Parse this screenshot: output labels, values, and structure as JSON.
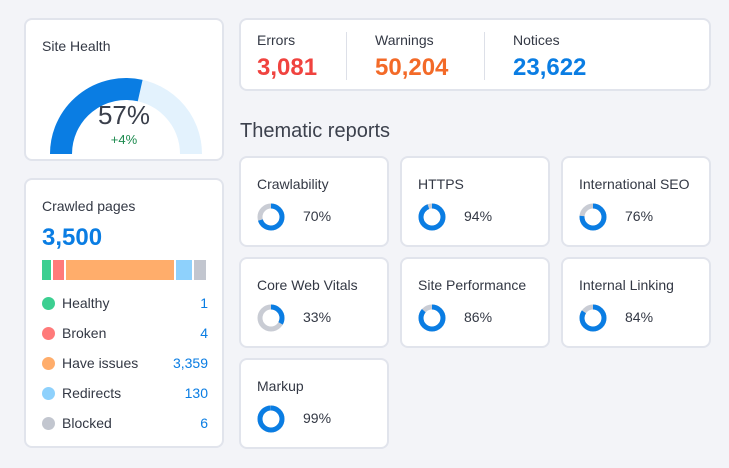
{
  "site_health": {
    "title": "Site Health",
    "percent": "57%",
    "value": 57,
    "delta": "+4%"
  },
  "crawled": {
    "title": "Crawled pages",
    "total": "3,500",
    "items": [
      {
        "label": "Healthy",
        "value": "1",
        "color": "#3ccf91"
      },
      {
        "label": "Broken",
        "value": "4",
        "color": "#ff7a7a"
      },
      {
        "label": "Have issues",
        "value": "3,359",
        "color": "#ffad6b"
      },
      {
        "label": "Redirects",
        "value": "130",
        "color": "#8ed1fc"
      },
      {
        "label": "Blocked",
        "value": "6",
        "color": "#c2c6cf"
      }
    ]
  },
  "issues": {
    "errors": {
      "label": "Errors",
      "value": "3,081",
      "color": "#f0433f"
    },
    "warnings": {
      "label": "Warnings",
      "value": "50,204",
      "color": "#f36a28"
    },
    "notices": {
      "label": "Notices",
      "value": "23,622",
      "color": "#0a7de3"
    }
  },
  "thematic": {
    "title": "Thematic reports",
    "reports": [
      {
        "name": "Crawlability",
        "percent": "70%",
        "value": 70
      },
      {
        "name": "HTTPS",
        "percent": "94%",
        "value": 94
      },
      {
        "name": "International SEO",
        "percent": "76%",
        "value": 76
      },
      {
        "name": "Core Web Vitals",
        "percent": "33%",
        "value": 33
      },
      {
        "name": "Site Performance",
        "percent": "86%",
        "value": 86
      },
      {
        "name": "Internal Linking",
        "percent": "84%",
        "value": 84
      },
      {
        "name": "Markup",
        "percent": "99%",
        "value": 99
      }
    ]
  },
  "colors": {
    "accent": "#0a7de3",
    "track": "#c9ccd4",
    "gauge_track": "#e3f2fd"
  }
}
